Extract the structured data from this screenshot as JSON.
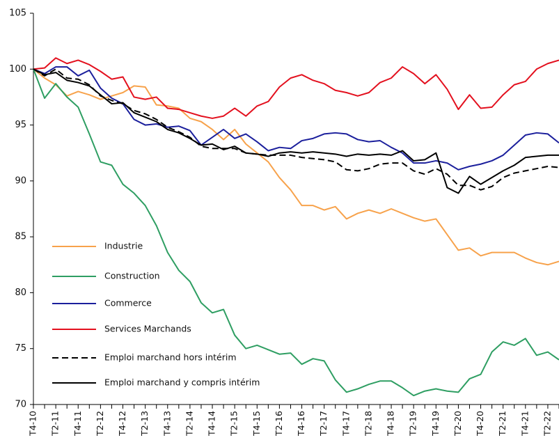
{
  "chart_data": {
    "type": "line",
    "categories": [
      "T4-10",
      null,
      "T2-11",
      null,
      "T4-11",
      null,
      "T2-12",
      null,
      "T4-12",
      null,
      "T2-13",
      null,
      "T4-13",
      null,
      "T2-14",
      null,
      "T4-14",
      null,
      "T2-15",
      null,
      "T4-15",
      null,
      "T2-16",
      null,
      "T4-16",
      null,
      "T2-17",
      null,
      "T4-17",
      null,
      "T2-18",
      null,
      "T4-18",
      null,
      "T2-19",
      null,
      "T4-19",
      null,
      "T2-20",
      null,
      "T4-20",
      null,
      "T2-21",
      null,
      "T4-21",
      null,
      "T2-22",
      null
    ],
    "series": [
      {
        "name": "Industrie",
        "color": "#f7a24b",
        "dash": false,
        "values": [
          100,
          99.2,
          98.6,
          97.6,
          98.0,
          97.7,
          97.3,
          97.6,
          97.9,
          98.5,
          98.4,
          96.8,
          96.7,
          96.5,
          95.6,
          95.3,
          94.6,
          93.7,
          94.6,
          93.3,
          92.5,
          91.7,
          90.3,
          89.2,
          87.8,
          87.8,
          87.4,
          87.7,
          86.6,
          87.1,
          87.4,
          87.1,
          87.5,
          87.1,
          86.7,
          86.4,
          86.6,
          85.2,
          83.8,
          84.0,
          83.3,
          83.6,
          83.6,
          83.6,
          83.1,
          82.7,
          82.5,
          82.8
        ]
      },
      {
        "name": "Construction",
        "color": "#2e9e62",
        "dash": false,
        "values": [
          100,
          97.4,
          98.7,
          97.5,
          96.6,
          94.2,
          91.7,
          91.4,
          89.7,
          88.9,
          87.8,
          86.0,
          83.6,
          82.0,
          81.0,
          79.1,
          78.2,
          78.5,
          76.2,
          75.0,
          75.3,
          74.9,
          74.5,
          74.6,
          73.6,
          74.1,
          73.9,
          72.2,
          71.1,
          71.4,
          71.8,
          72.1,
          72.1,
          71.5,
          70.8,
          71.2,
          71.4,
          71.2,
          71.1,
          72.3,
          72.7,
          74.7,
          75.6,
          75.3,
          75.9,
          74.4,
          74.7,
          74.0
        ]
      },
      {
        "name": "Commerce",
        "color": "#1b1f9c",
        "dash": false,
        "values": [
          100,
          99.6,
          100.2,
          100.2,
          99.4,
          99.9,
          98.3,
          97.4,
          96.9,
          95.5,
          95.0,
          95.1,
          94.8,
          94.9,
          94.5,
          93.2,
          93.9,
          94.6,
          93.8,
          94.2,
          93.5,
          92.7,
          93.0,
          92.9,
          93.6,
          93.8,
          94.2,
          94.3,
          94.2,
          93.7,
          93.5,
          93.6,
          93.0,
          92.5,
          91.6,
          91.6,
          91.8,
          91.6,
          91.0,
          91.3,
          91.5,
          91.8,
          92.3,
          93.2,
          94.1,
          94.3,
          94.2,
          93.4
        ]
      },
      {
        "name": "Services Marchands",
        "color": "#e3101e",
        "dash": false,
        "values": [
          100,
          100.1,
          101.0,
          100.5,
          100.8,
          100.4,
          99.8,
          99.1,
          99.3,
          97.5,
          97.3,
          97.5,
          96.5,
          96.4,
          96.1,
          95.8,
          95.6,
          95.8,
          96.5,
          95.8,
          96.7,
          97.1,
          98.4,
          99.2,
          99.5,
          99.0,
          98.7,
          98.1,
          97.9,
          97.6,
          97.9,
          98.8,
          99.2,
          100.2,
          99.6,
          98.7,
          99.5,
          98.2,
          96.4,
          97.7,
          96.5,
          96.6,
          97.7,
          98.6,
          98.9,
          100.0,
          100.5,
          100.8
        ]
      },
      {
        "name": "Emploi marchand hors intérim",
        "color": "#000000",
        "dash": true,
        "values": [
          100,
          99.4,
          100.0,
          99.2,
          99.1,
          98.6,
          97.6,
          97.2,
          96.9,
          96.3,
          96.0,
          95.5,
          94.8,
          94.4,
          93.9,
          93.1,
          92.9,
          92.9,
          92.9,
          92.5,
          92.4,
          92.3,
          92.3,
          92.3,
          92.1,
          92.0,
          91.9,
          91.7,
          91.0,
          90.9,
          91.1,
          91.5,
          91.6,
          91.6,
          90.9,
          90.6,
          91.1,
          90.6,
          89.6,
          89.6,
          89.2,
          89.5,
          90.3,
          90.7,
          90.9,
          91.1,
          91.3,
          91.2
        ]
      },
      {
        "name": "Emploi marchand y compris intérim",
        "color": "#000000",
        "dash": false,
        "values": [
          100,
          99.5,
          99.7,
          99.0,
          98.8,
          98.5,
          97.7,
          96.9,
          97.0,
          96.1,
          95.7,
          95.3,
          94.6,
          94.3,
          93.8,
          93.2,
          93.3,
          92.8,
          93.1,
          92.5,
          92.4,
          92.2,
          92.5,
          92.6,
          92.5,
          92.6,
          92.5,
          92.4,
          92.2,
          92.4,
          92.3,
          92.4,
          92.3,
          92.7,
          91.8,
          91.9,
          92.5,
          89.4,
          88.9,
          90.4,
          89.7,
          90.3,
          90.9,
          91.4,
          92.1,
          92.2,
          92.3,
          92.3
        ]
      }
    ],
    "ylim": [
      70,
      105
    ],
    "yticks": [
      70,
      75,
      80,
      85,
      90,
      95,
      100,
      105
    ],
    "grid": false
  }
}
